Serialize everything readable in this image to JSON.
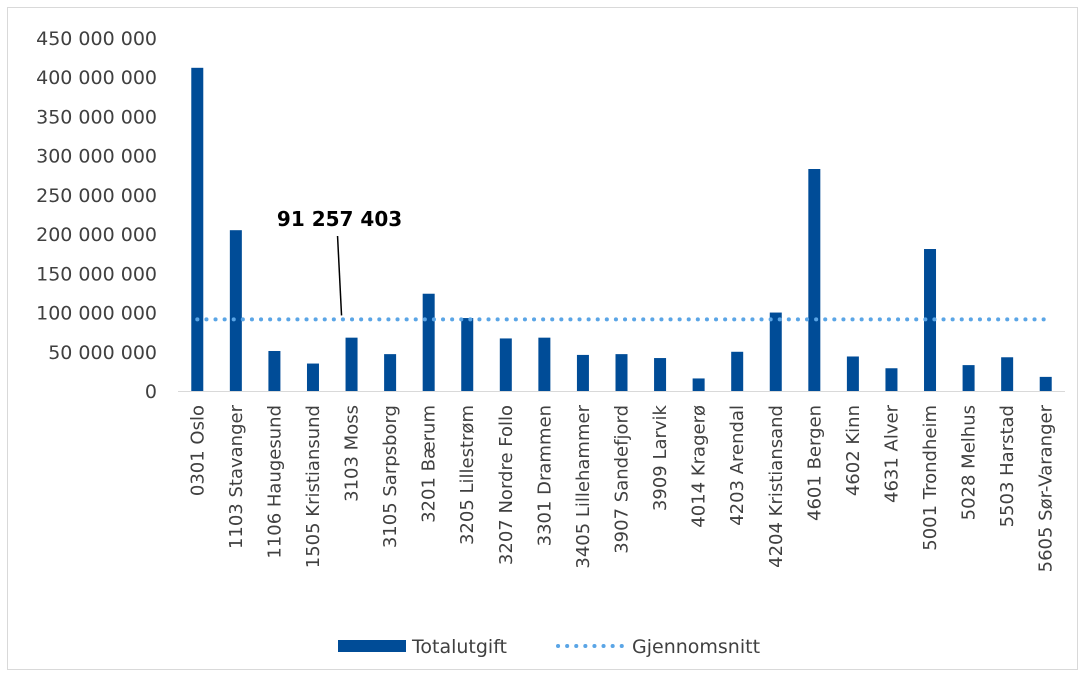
{
  "chart_data": {
    "type": "bar",
    "categories": [
      "0301 Oslo",
      "1103 Stavanger",
      "1106 Haugesund",
      "1505 Kristiansund",
      "3103 Moss",
      "3105 Sarpsborg",
      "3201 Bærum",
      "3205 Lillestrøm",
      "3207 Nordre Follo",
      "3301 Drammen",
      "3405 Lillehammer",
      "3907 Sandefjord",
      "3909 Larvik",
      "4014 Kragerø",
      "4203 Arendal",
      "4204 Kristiansand",
      "4601 Bergen",
      "4602 Kinn",
      "4631 Alver",
      "5001 Trondheim",
      "5028 Melhus",
      "5503 Harstad",
      "5605 Sør-Varanger"
    ],
    "series": [
      {
        "name": "Totalutgift",
        "type": "bar",
        "color": "#004C97",
        "values": [
          412000000,
          205000000,
          51000000,
          35000000,
          68000000,
          47000000,
          124000000,
          93000000,
          67000000,
          68000000,
          46000000,
          47000000,
          42000000,
          16000000,
          50000000,
          100000000,
          283000000,
          44000000,
          29000000,
          181000000,
          33000000,
          43000000,
          18000000
        ]
      },
      {
        "name": "Gjennomsnitt",
        "type": "line",
        "style": "dotted",
        "color": "#5AA5E6",
        "value": 91257403
      }
    ],
    "y_ticks": [
      "0",
      "50 000 000",
      "100 000 000",
      "150 000 000",
      "200 000 000",
      "250 000 000",
      "300 000 000",
      "350 000 000",
      "400 000 000",
      "450 000 000"
    ],
    "ylim": [
      0,
      450000000
    ],
    "annotation": {
      "text": "91 257 403",
      "points_to": "Gjennomsnitt"
    },
    "gridlines": false,
    "legend_position": "bottom",
    "title": "",
    "xlabel": "",
    "ylabel": ""
  }
}
